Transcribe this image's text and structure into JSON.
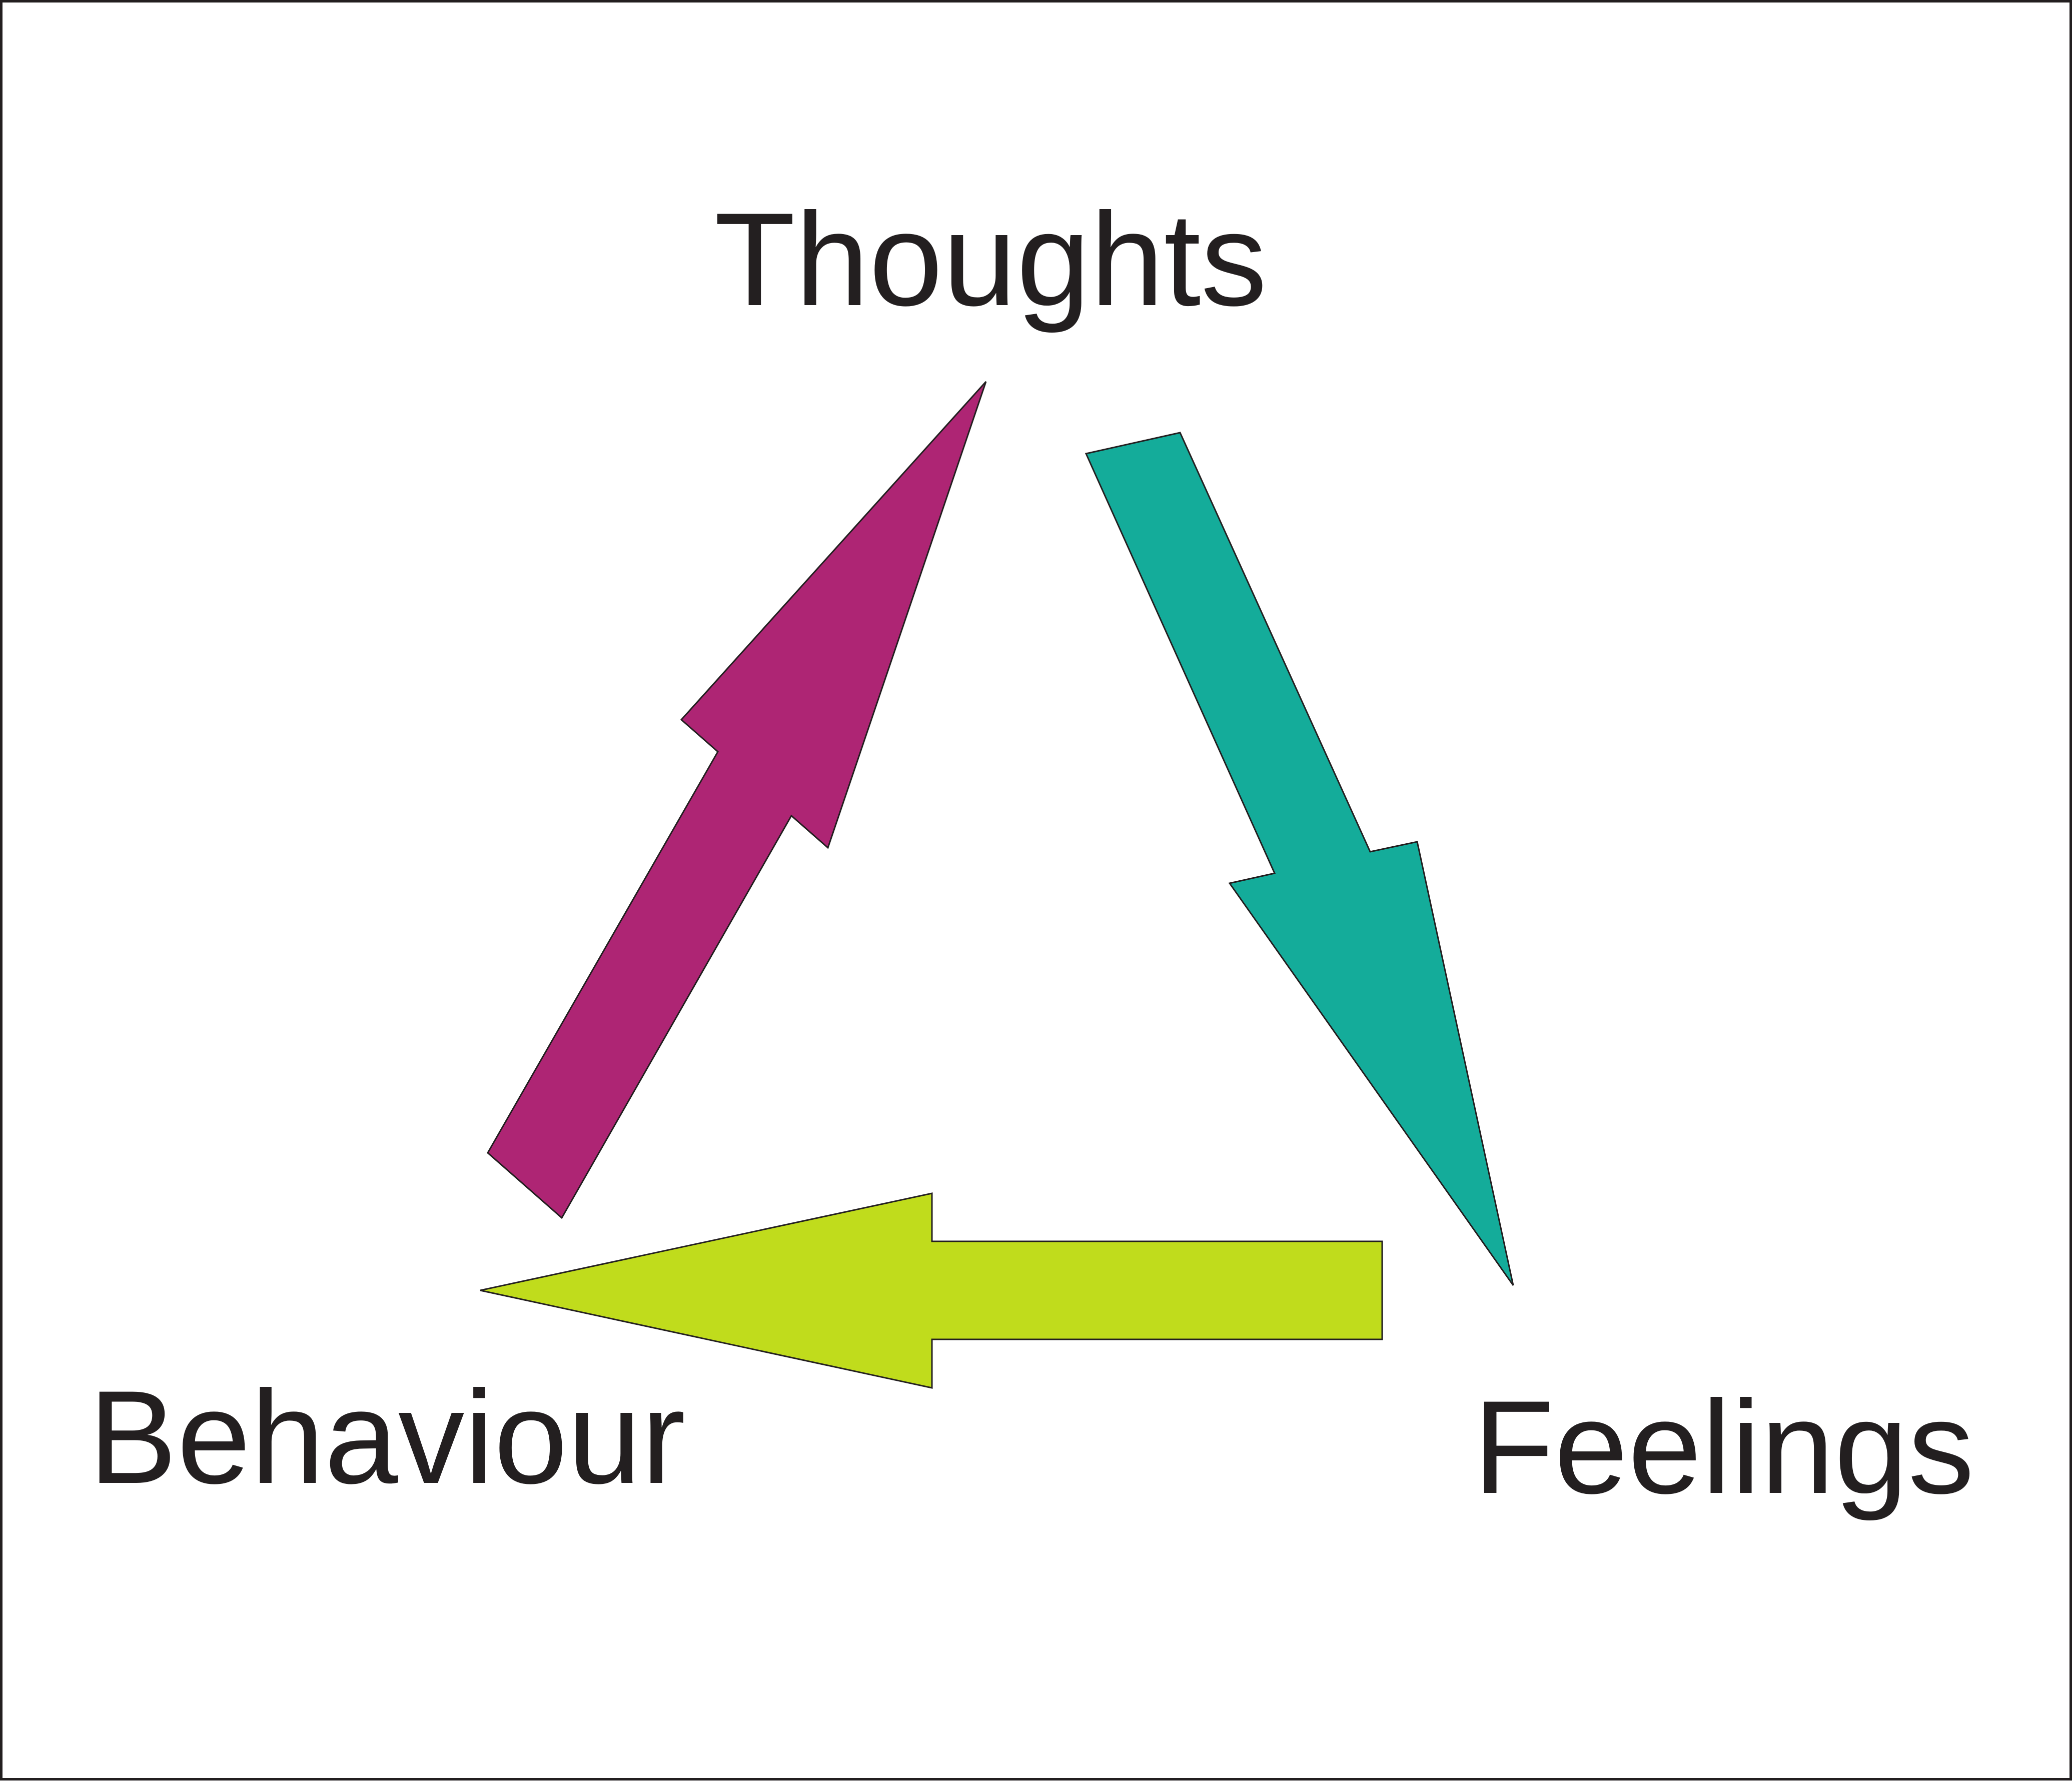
{
  "nodes": {
    "thoughts": "Thoughts",
    "feelings": "Feelings",
    "behaviour": "Behaviour"
  },
  "arrows": [
    {
      "from": "thoughts",
      "to": "feelings",
      "color": "#14ac9a"
    },
    {
      "from": "feelings",
      "to": "behaviour",
      "color": "#c0dc1c"
    },
    {
      "from": "behaviour",
      "to": "thoughts",
      "color": "#ae2574"
    }
  ],
  "colors": {
    "text": "#231f20",
    "outline": "#231f20",
    "background": "#ffffff"
  }
}
